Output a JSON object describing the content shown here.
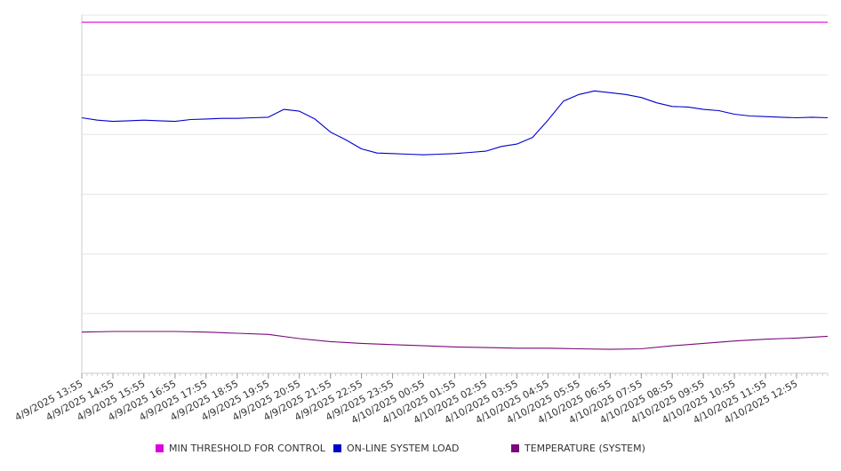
{
  "colors": {
    "min_threshold": "#dd00dd",
    "online_load": "#0000cc",
    "temperature": "#7a0a7a",
    "grid": "#e6e6e6",
    "axis": "#cccccc",
    "tick_text": "#333333"
  },
  "legend": {
    "items": [
      {
        "label": "MIN THRESHOLD FOR CONTROL",
        "color": "#dd00dd"
      },
      {
        "label": "ON-LINE SYSTEM LOAD",
        "color": "#0000cc"
      },
      {
        "label": "TEMPERATURE (SYSTEM)",
        "color": "#7a0a7a"
      }
    ]
  },
  "chart_data": {
    "type": "line",
    "x_tick_labels": [
      "4/9/2025 13:55",
      "4/9/2025 14:55",
      "4/9/2025 15:55",
      "4/9/2025 16:55",
      "4/9/2025 17:55",
      "4/9/2025 18:55",
      "4/9/2025 19:55",
      "4/9/2025 20:55",
      "4/9/2025 21:55",
      "4/9/2025 22:55",
      "4/9/2025 23:55",
      "4/10/2025 00:55",
      "4/10/2025 01:55",
      "4/10/2025 02:55",
      "4/10/2025 03:55",
      "4/10/2025 04:55",
      "4/10/2025 05:55",
      "4/10/2025 06:55",
      "4/10/2025 07:55",
      "4/10/2025 08:55",
      "4/10/2025 09:55",
      "4/10/2025 10:55",
      "4/10/2025 11:55",
      "4/10/2025 12:55"
    ],
    "y_axis": {
      "ylim": [
        0,
        6
      ],
      "gridlines": [
        1,
        2,
        3,
        4,
        5,
        6
      ],
      "tick_labels_shown": false
    },
    "grid": true,
    "legend_position": "bottom",
    "series": [
      {
        "name": "MIN THRESHOLD FOR CONTROL",
        "color": "#dd00dd",
        "x": [
          "4/9/2025 13:55",
          "4/10/2025 13:55"
        ],
        "y": [
          5.88,
          5.88
        ]
      },
      {
        "name": "ON-LINE SYSTEM LOAD",
        "color": "#0000cc",
        "x": [
          "4/9/2025 13:55",
          "4/9/2025 14:25",
          "4/9/2025 14:55",
          "4/9/2025 15:25",
          "4/9/2025 15:55",
          "4/9/2025 16:25",
          "4/9/2025 16:55",
          "4/9/2025 17:25",
          "4/9/2025 17:55",
          "4/9/2025 18:25",
          "4/9/2025 18:55",
          "4/9/2025 19:25",
          "4/9/2025 19:55",
          "4/9/2025 20:25",
          "4/9/2025 20:55",
          "4/9/2025 21:25",
          "4/9/2025 21:55",
          "4/9/2025 22:25",
          "4/9/2025 22:55",
          "4/9/2025 23:25",
          "4/9/2025 23:55",
          "4/10/2025 00:25",
          "4/10/2025 00:55",
          "4/10/2025 01:25",
          "4/10/2025 01:55",
          "4/10/2025 02:25",
          "4/10/2025 02:55",
          "4/10/2025 03:25",
          "4/10/2025 03:55",
          "4/10/2025 04:25",
          "4/10/2025 04:55",
          "4/10/2025 05:25",
          "4/10/2025 05:55",
          "4/10/2025 06:25",
          "4/10/2025 06:55",
          "4/10/2025 07:25",
          "4/10/2025 07:55",
          "4/10/2025 08:25",
          "4/10/2025 08:55",
          "4/10/2025 09:25",
          "4/10/2025 09:55",
          "4/10/2025 10:25",
          "4/10/2025 10:55",
          "4/10/2025 11:25",
          "4/10/2025 11:55",
          "4/10/2025 12:25",
          "4/10/2025 12:55",
          "4/10/2025 13:25",
          "4/10/2025 13:55"
        ],
        "y": [
          4.28,
          4.24,
          4.22,
          4.23,
          4.24,
          4.23,
          4.22,
          4.25,
          4.26,
          4.27,
          4.27,
          4.28,
          4.29,
          4.42,
          4.39,
          4.26,
          4.04,
          3.91,
          3.76,
          3.69,
          3.68,
          3.67,
          3.66,
          3.67,
          3.68,
          3.7,
          3.72,
          3.8,
          3.84,
          3.95,
          4.24,
          4.56,
          4.67,
          4.73,
          4.7,
          4.67,
          4.62,
          4.53,
          4.47,
          4.46,
          4.42,
          4.4,
          4.34,
          4.31,
          4.3,
          4.29,
          4.28,
          4.29,
          4.28
        ]
      },
      {
        "name": "TEMPERATURE (SYSTEM)",
        "color": "#7a0a7a",
        "x": [
          "4/9/2025 13:55",
          "4/9/2025 14:55",
          "4/9/2025 15:55",
          "4/9/2025 16:55",
          "4/9/2025 17:55",
          "4/9/2025 18:55",
          "4/9/2025 19:55",
          "4/9/2025 20:55",
          "4/9/2025 21:55",
          "4/9/2025 22:55",
          "4/9/2025 23:55",
          "4/10/2025 00:55",
          "4/10/2025 01:55",
          "4/10/2025 02:55",
          "4/10/2025 03:55",
          "4/10/2025 04:55",
          "4/10/2025 05:55",
          "4/10/2025 06:55",
          "4/10/2025 07:55",
          "4/10/2025 08:55",
          "4/10/2025 09:55",
          "4/10/2025 10:55",
          "4/10/2025 11:55",
          "4/10/2025 12:55",
          "4/10/2025 13:55"
        ],
        "y": [
          0.69,
          0.7,
          0.7,
          0.7,
          0.69,
          0.67,
          0.65,
          0.58,
          0.53,
          0.5,
          0.48,
          0.46,
          0.44,
          0.43,
          0.42,
          0.42,
          0.41,
          0.4,
          0.41,
          0.46,
          0.5,
          0.54,
          0.57,
          0.59,
          0.62
        ]
      }
    ]
  }
}
